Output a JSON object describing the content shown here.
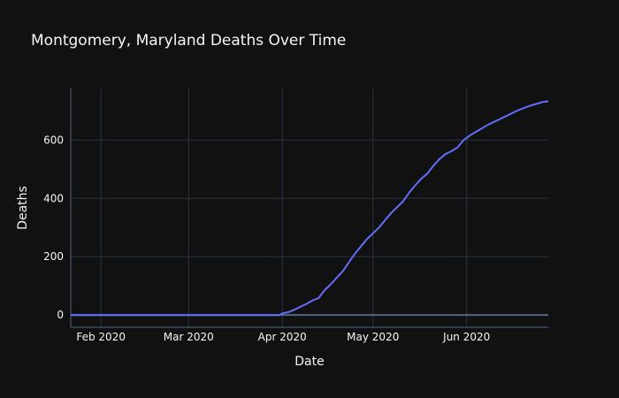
{
  "chart_data": {
    "type": "line",
    "title": "Montgomery, Maryland Deaths Over Time",
    "xlabel": "Date",
    "ylabel": "Deaths",
    "x_range": [
      "2020-01-22",
      "2020-06-28"
    ],
    "ylim": [
      -42,
      777
    ],
    "x_ticks": [
      {
        "date": "2020-02-01",
        "label": "Feb 2020"
      },
      {
        "date": "2020-03-01",
        "label": "Mar 2020"
      },
      {
        "date": "2020-04-01",
        "label": "Apr 2020"
      },
      {
        "date": "2020-05-01",
        "label": "May 2020"
      },
      {
        "date": "2020-06-01",
        "label": "Jun 2020"
      }
    ],
    "y_ticks": [
      {
        "value": 0,
        "label": "0"
      },
      {
        "value": 200,
        "label": "200"
      },
      {
        "value": 400,
        "label": "400"
      },
      {
        "value": 600,
        "label": "600"
      }
    ],
    "grid": true,
    "legend": "none",
    "colors": {
      "background": "#111111",
      "grid": "#283442",
      "zeroline": "#506784",
      "text": "#f2f5fa"
    },
    "series": [
      {
        "color": "#636efa",
        "x": [
          "2020-01-22",
          "2020-03-31",
          "2020-04-01",
          "2020-04-03",
          "2020-04-05",
          "2020-04-07",
          "2020-04-09",
          "2020-04-11",
          "2020-04-13",
          "2020-04-15",
          "2020-04-17",
          "2020-04-19",
          "2020-04-21",
          "2020-04-23",
          "2020-04-25",
          "2020-04-27",
          "2020-04-29",
          "2020-05-01",
          "2020-05-03",
          "2020-05-05",
          "2020-05-07",
          "2020-05-09",
          "2020-05-11",
          "2020-05-13",
          "2020-05-15",
          "2020-05-17",
          "2020-05-19",
          "2020-05-21",
          "2020-05-23",
          "2020-05-25",
          "2020-05-27",
          "2020-05-29",
          "2020-05-31",
          "2020-06-02",
          "2020-06-04",
          "2020-06-06",
          "2020-06-08",
          "2020-06-10",
          "2020-06-12",
          "2020-06-14",
          "2020-06-16",
          "2020-06-18",
          "2020-06-20",
          "2020-06-22",
          "2020-06-24",
          "2020-06-26",
          "2020-06-28"
        ],
        "y": [
          0,
          0,
          5,
          10,
          18,
          28,
          38,
          50,
          58,
          85,
          105,
          128,
          150,
          180,
          210,
          235,
          260,
          280,
          300,
          325,
          350,
          370,
          390,
          420,
          445,
          468,
          485,
          512,
          535,
          552,
          562,
          575,
          600,
          615,
          628,
          640,
          652,
          662,
          672,
          682,
          692,
          702,
          710,
          718,
          724,
          730,
          733
        ]
      }
    ]
  }
}
